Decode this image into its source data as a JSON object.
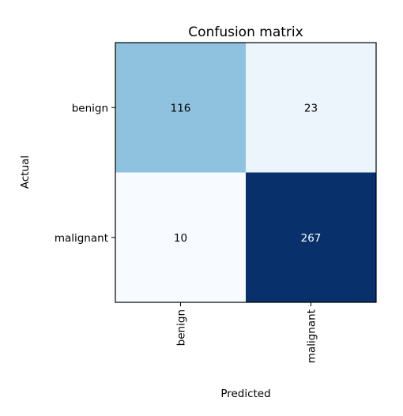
{
  "chart_data": {
    "type": "heatmap",
    "title": "Confusion matrix",
    "xlabel": "Predicted",
    "ylabel": "Actual",
    "x_categories": [
      "benign",
      "malignant"
    ],
    "y_categories": [
      "benign",
      "malignant"
    ],
    "values": [
      [
        116,
        23
      ],
      [
        10,
        267
      ]
    ],
    "colormap": "Blues",
    "colors": {
      "low": "#f7fbff",
      "high": "#08306b",
      "text_dark": "#000000",
      "text_light": "#ffffff"
    },
    "grid": false
  }
}
